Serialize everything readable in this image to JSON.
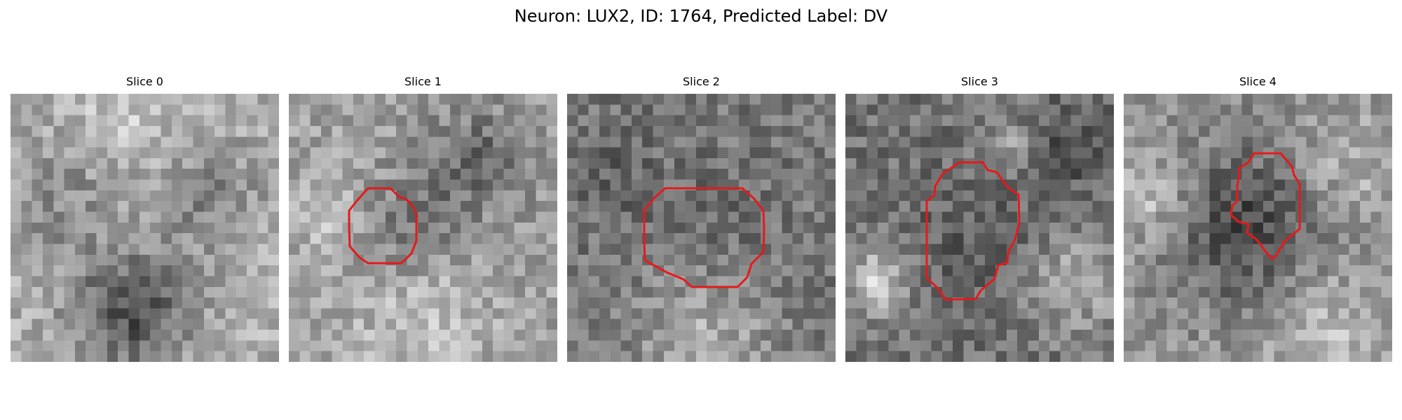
{
  "figure": {
    "title": "Neuron: LUX2, ID: 1764, Predicted Label: DV"
  },
  "contour_color": "#e41a1c",
  "panels": [
    {
      "title": "Slice 0",
      "has_contour": false
    },
    {
      "title": "Slice 1",
      "has_contour": true
    },
    {
      "title": "Slice 2",
      "has_contour": true
    },
    {
      "title": "Slice 3",
      "has_contour": true
    },
    {
      "title": "Slice 4",
      "has_contour": true
    }
  ]
}
